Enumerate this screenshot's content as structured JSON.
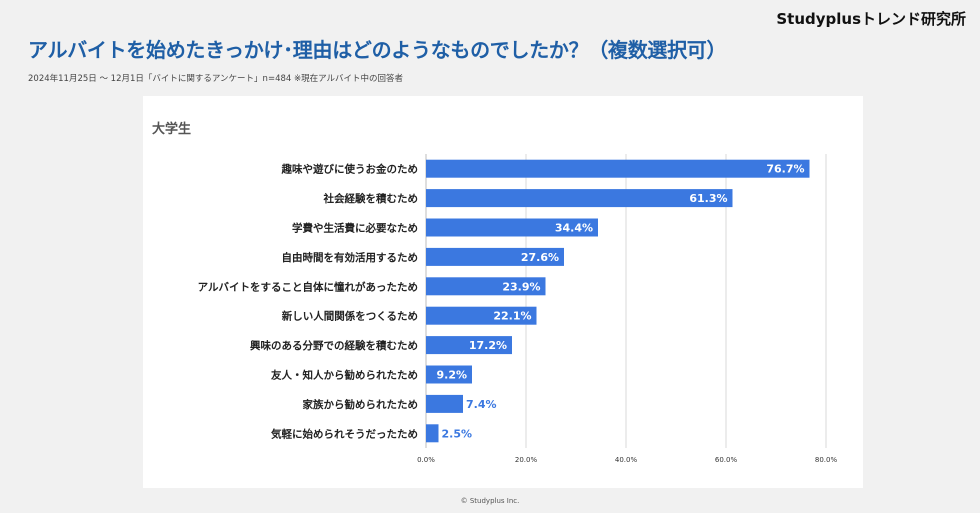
{
  "brand": "Studyplusトレンド研究所",
  "title": "アルバイトを始めたきっかけ･理由はどのようなものでしたか？（複数選択可）",
  "subtitle": "2024年11月25日 〜 12月1日「バイトに関するアンケート」n=484 ※現在アルバイト中の回答者",
  "footer": "© Studyplus Inc.",
  "chart_data": {
    "type": "bar",
    "orientation": "horizontal",
    "group": "大学生",
    "categories": [
      "趣味や遊びに使うお金のため",
      "社会経験を積むため",
      "学費や生活費に必要なため",
      "自由時間を有効活用するため",
      "アルバイトをすること自体に憧れがあったため",
      "新しい人間関係をつくるため",
      "興味のある分野での経験を積むため",
      "友人・知人から勧められたため",
      "家族から勧められたため",
      "気軽に始められそうだったため"
    ],
    "values": [
      76.7,
      61.3,
      34.4,
      27.6,
      23.9,
      22.1,
      17.2,
      9.2,
      7.4,
      2.5
    ],
    "value_labels": [
      "76.7%",
      "61.3%",
      "34.4%",
      "27.6%",
      "23.9%",
      "22.1%",
      "17.2%",
      "9.2%",
      "7.4%",
      "2.5%"
    ],
    "xlim": [
      0,
      80
    ],
    "xticks": [
      "0.0%",
      "20.0%",
      "40.0%",
      "60.0%",
      "80.0%"
    ],
    "grid": true,
    "bar_color": "#3b78e0"
  }
}
